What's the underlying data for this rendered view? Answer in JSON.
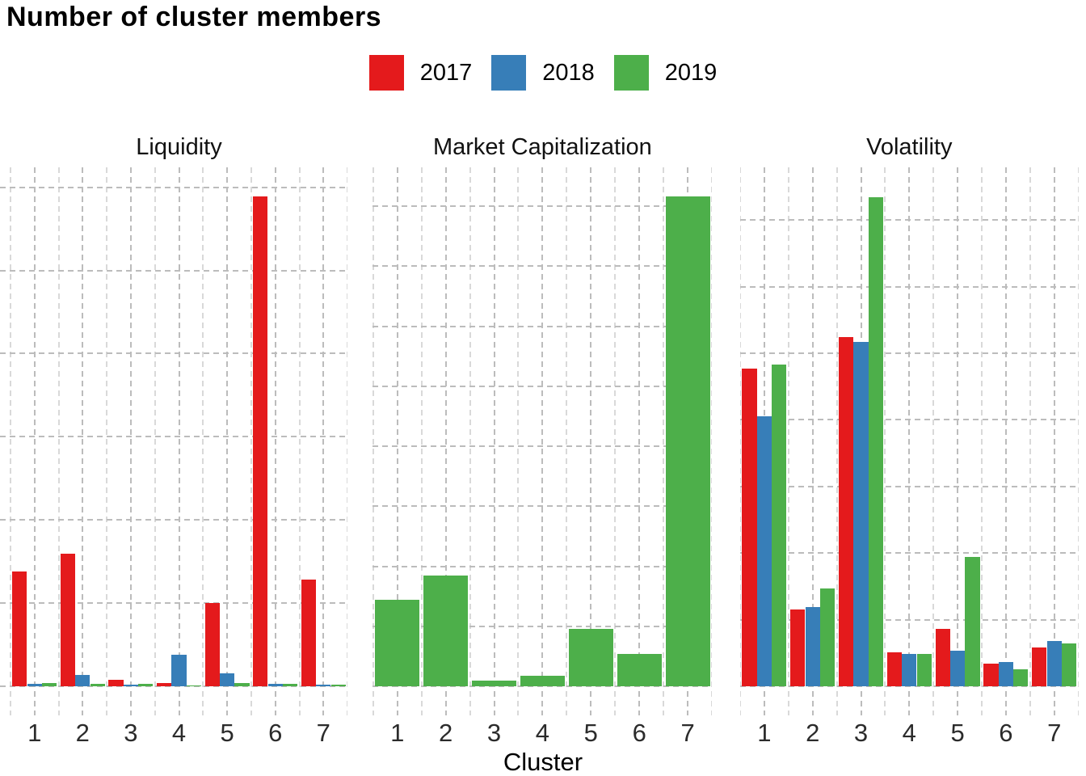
{
  "chart_data": {
    "type": "bar",
    "title": "Number of cluster members",
    "xlabel": "Cluster",
    "ylabel": "",
    "categories": [
      "1",
      "2",
      "3",
      "4",
      "5",
      "6",
      "7"
    ],
    "legend_position": "top-center",
    "legend_items": [
      {
        "label": "2017",
        "color": "#E41A1C"
      },
      {
        "label": "2018",
        "color": "#377EB8"
      },
      {
        "label": "2019",
        "color": "#4DAF4A"
      }
    ],
    "grid": {
      "style": "dashed",
      "major_color": "#BCBCBC",
      "minor_color": "#D9D9D9"
    },
    "y_axis": {
      "labels_visible": false,
      "note": "y-axis tick labels are cropped out of the screenshot; values below are measured in horizontal-gridline intervals (baseline = 0)",
      "scales": "free per panel"
    },
    "panels": [
      {
        "title": "Liquidity",
        "n_gridlines": 6,
        "ylim": [
          0,
          6.24
        ],
        "series": [
          {
            "name": "2017",
            "values": [
              1.38,
              1.59,
              0.08,
              0.04,
              1.0,
              5.89,
              1.28
            ]
          },
          {
            "name": "2018",
            "values": [
              0.03,
              0.14,
              0.02,
              0.38,
              0.16,
              0.03,
              0.02
            ]
          },
          {
            "name": "2019",
            "values": [
              0.04,
              0.03,
              0.03,
              0.01,
              0.04,
              0.03,
              0.02
            ]
          }
        ]
      },
      {
        "title": "Market Capitalization",
        "n_gridlines": 8,
        "ylim": [
          0,
          8.65
        ],
        "series": [
          {
            "name": "2019",
            "values": [
              1.44,
              1.84,
              0.09,
              0.17,
              0.96,
              0.54,
              8.16
            ]
          }
        ]
      },
      {
        "title": "Volatility",
        "n_gridlines": 7,
        "ylim": [
          0,
          7.79
        ],
        "series": [
          {
            "name": "2017",
            "values": [
              4.77,
              1.15,
              5.24,
              0.51,
              0.86,
              0.34,
              0.58
            ]
          },
          {
            "name": "2018",
            "values": [
              4.05,
              1.19,
              5.17,
              0.48,
              0.53,
              0.36,
              0.68
            ]
          },
          {
            "name": "2019",
            "values": [
              4.83,
              1.47,
              7.34,
              0.48,
              1.94,
              0.25,
              0.64
            ]
          }
        ]
      }
    ]
  }
}
